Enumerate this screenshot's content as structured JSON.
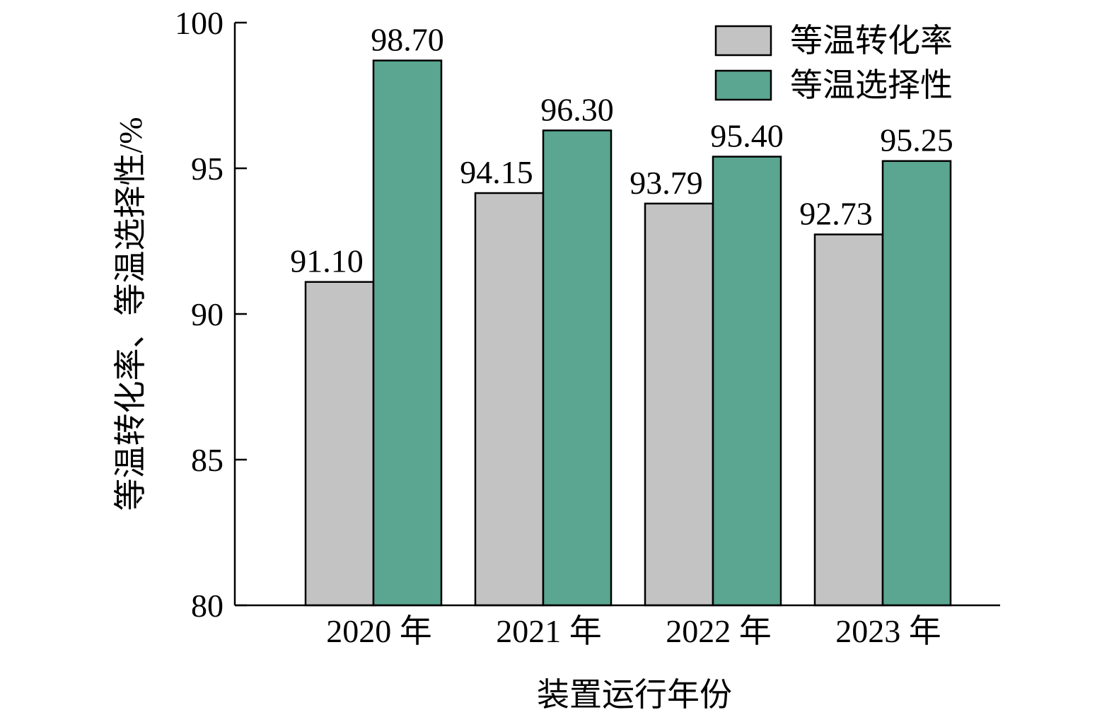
{
  "chart_data": {
    "type": "bar",
    "categories": [
      "2020 年",
      "2021 年",
      "2022 年",
      "2023 年"
    ],
    "series": [
      {
        "name": "等温转化率",
        "color": "#c3c3c3",
        "values": [
          91.1,
          94.15,
          93.79,
          92.73
        ],
        "labels": [
          "91.10",
          "94.15",
          "93.79",
          "92.73"
        ]
      },
      {
        "name": "等温选择性",
        "color": "#5aa690",
        "values": [
          98.7,
          96.3,
          95.4,
          95.25
        ],
        "labels": [
          "98.70",
          "96.30",
          "95.40",
          "95.25"
        ]
      }
    ],
    "xlabel": "装置运行年份",
    "ylabel": "等温转化率、等温选择性/%",
    "ylim": [
      80,
      100
    ],
    "yticks": [
      "80",
      "85",
      "90",
      "95",
      "100"
    ],
    "grid": false,
    "legend_position": "top-right"
  }
}
